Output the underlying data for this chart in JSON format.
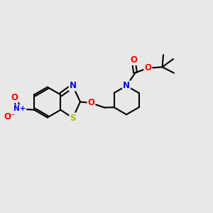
{
  "background_color": "#e8e8e8",
  "bond_color": "#000000",
  "bond_width": 1.5,
  "atom_colors": {
    "N": "#0000ff",
    "O": "#ff0000",
    "S": "#b8b800",
    "C": "#000000"
  },
  "font_size_atom": 8.5
}
